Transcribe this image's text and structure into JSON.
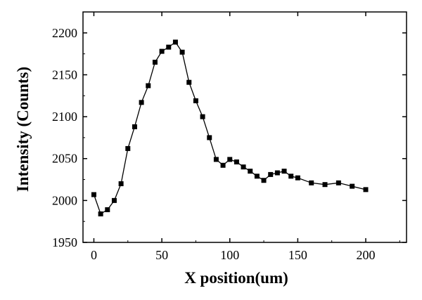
{
  "chart_data": {
    "type": "line",
    "title": "",
    "xlabel": "X position(um)",
    "ylabel": "Intensity (Counts)",
    "xlim": [
      -8,
      230
    ],
    "ylim": [
      1950,
      2225
    ],
    "xticks": [
      0,
      50,
      100,
      150,
      200
    ],
    "yticks": [
      1950,
      2000,
      2050,
      2100,
      2150,
      2200
    ],
    "xtick_labels": [
      "0",
      "50",
      "100",
      "150",
      "200"
    ],
    "ytick_labels": [
      "1950",
      "2000",
      "2050",
      "2100",
      "2150",
      "2200"
    ],
    "grid": false,
    "legend": "none",
    "series": [
      {
        "marker": "square",
        "color": "#000000",
        "x": [
          0,
          5,
          10,
          15,
          20,
          25,
          30,
          35,
          40,
          45,
          50,
          55,
          60,
          65,
          70,
          75,
          80,
          85,
          90,
          95,
          100,
          105,
          110,
          115,
          120,
          125,
          130,
          135,
          140,
          145,
          150,
          160,
          170,
          180,
          190,
          200
        ],
        "y": [
          2007,
          1984,
          1989,
          2000,
          2020,
          2062,
          2088,
          2117,
          2137,
          2165,
          2178,
          2183,
          2189,
          2177,
          2141,
          2119,
          2100,
          2075,
          2049,
          2042,
          2049,
          2046,
          2040,
          2035,
          2029,
          2024,
          2031,
          2033,
          2035,
          2029,
          2027,
          2021,
          2019,
          2021,
          2017,
          2013
        ]
      }
    ]
  }
}
